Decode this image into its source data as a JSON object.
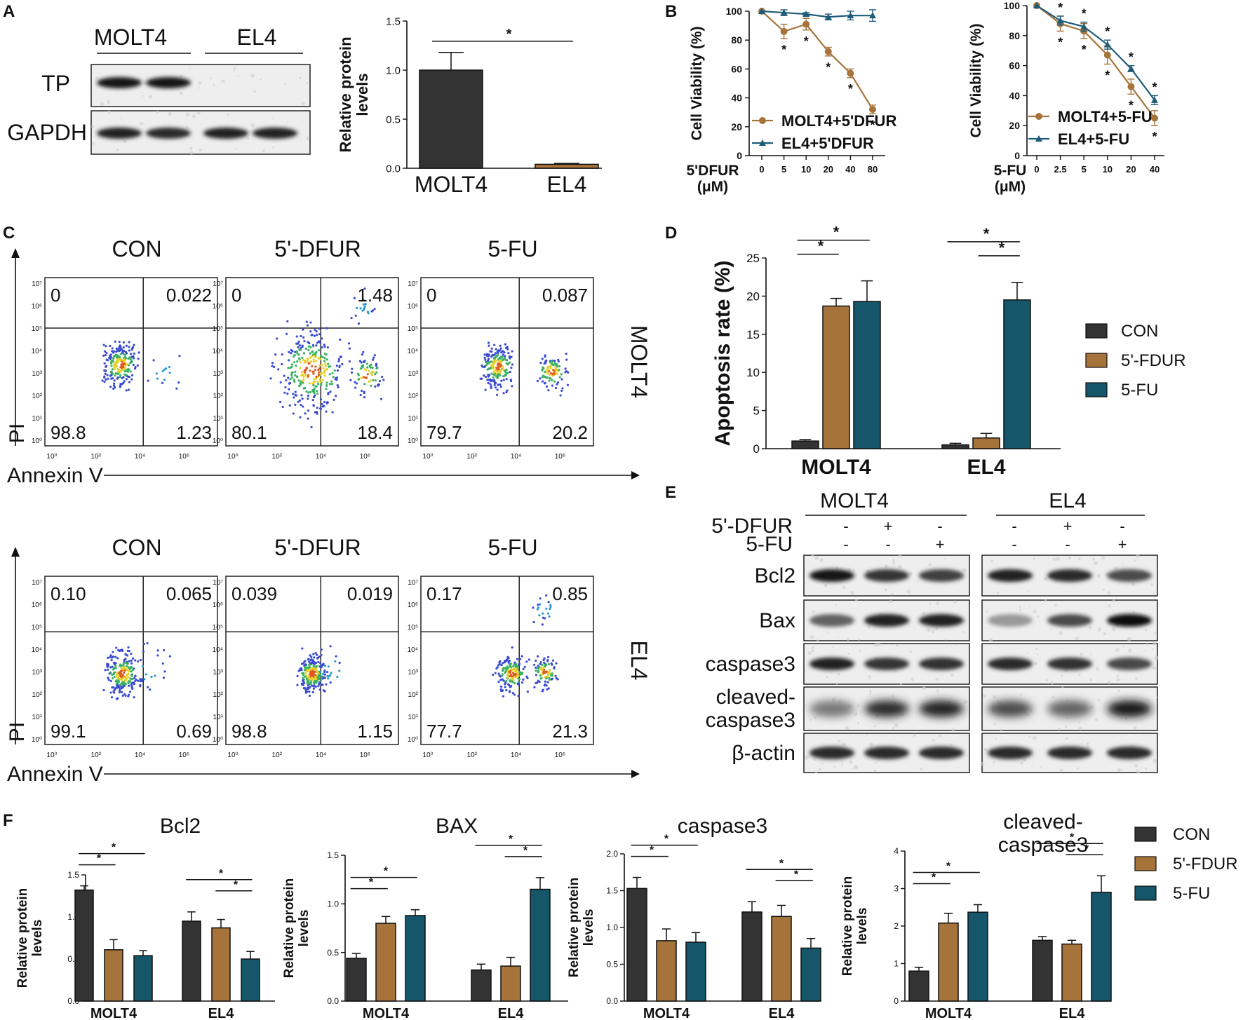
{
  "colors": {
    "con": "#333333",
    "dfur": "#A6743A",
    "fu": "#15566B",
    "molt4_line": "#A6743A",
    "el4_line": "#1F5C78",
    "axis": "#111111"
  },
  "panels": {
    "A": "A",
    "B": "B",
    "C": "C",
    "D": "D",
    "E": "E",
    "F": "F"
  },
  "panelA": {
    "blot_col_labels": [
      "MOLT4",
      "EL4"
    ],
    "blot_row_labels": [
      "TP",
      "GAPDH"
    ]
  },
  "panelC": {
    "conditions": [
      "CON",
      "5'-DFUR",
      "5-FU"
    ],
    "cell_lines": [
      "MOLT4",
      "EL4"
    ],
    "xlabel": "Annexin V",
    "ylabel": "PI",
    "xticks": [
      "10⁰",
      "10²",
      "10⁴",
      "10⁶"
    ],
    "yticks": [
      "10⁰",
      "10¹",
      "10²",
      "10³",
      "10⁴",
      "10⁵",
      "10⁶",
      "10⁷"
    ],
    "quadrants": [
      [
        {
          "ul": "0",
          "ur": "0.022",
          "ll": "98.8",
          "lr": "1.23"
        },
        {
          "ul": "0",
          "ur": "1.48",
          "ll": "80.1",
          "lr": "18.4"
        },
        {
          "ul": "0",
          "ur": "0.087",
          "ll": "79.7",
          "lr": "20.2"
        }
      ],
      [
        {
          "ul": "0.10",
          "ur": "0.065",
          "ll": "99.1",
          "lr": "0.69"
        },
        {
          "ul": "0.039",
          "ur": "0.019",
          "ll": "98.8",
          "lr": "1.15"
        },
        {
          "ul": "0.17",
          "ur": "0.85",
          "ll": "77.7",
          "lr": "21.3"
        }
      ]
    ]
  },
  "panelE": {
    "groups": [
      "MOLT4",
      "EL4"
    ],
    "treatment_rows": [
      {
        "label": "5'-DFUR",
        "signs": [
          "-",
          "+",
          "-",
          "-",
          "+",
          "-"
        ]
      },
      {
        "label": "5-FU",
        "signs": [
          "-",
          "-",
          "+",
          "-",
          "-",
          "+"
        ]
      }
    ],
    "proteins": [
      "Bcl2",
      "Bax",
      "caspase3",
      "cleaved-\ncaspase3",
      "β-actin"
    ]
  },
  "chart_data": [
    {
      "id": "A",
      "type": "bar",
      "title": "",
      "categories": [
        "MOLT4",
        "EL4"
      ],
      "values": [
        1.0,
        0.04
      ],
      "errors": [
        0.18,
        0.01
      ],
      "colors": [
        "#333333",
        "#A6743A"
      ],
      "ylabel": "Relative protein\nlevels",
      "ylim": [
        0,
        1.5
      ],
      "yticks": [
        "0.0",
        "0.5",
        "1.0",
        "1.5"
      ],
      "significance": [
        {
          "from": 0,
          "to": 1,
          "label": "*"
        }
      ]
    },
    {
      "id": "B1",
      "type": "line",
      "x": [
        "0",
        "5",
        "10",
        "20",
        "40",
        "80"
      ],
      "xlabel": "5'DFUR\n(μM)",
      "ylabel": "Cell Viability (%)",
      "ylim": [
        0,
        100
      ],
      "yticks": [
        "0",
        "20",
        "40",
        "60",
        "80",
        "100"
      ],
      "series": [
        {
          "name": "MOLT4+5'DFUR",
          "values": [
            100,
            86,
            91,
            72,
            57,
            32
          ],
          "errors": [
            0,
            5,
            4,
            3,
            3,
            3
          ],
          "marks": [
            "",
            "*",
            "*",
            "*",
            "*",
            "*"
          ]
        },
        {
          "name": "EL4+5'DFUR",
          "values": [
            100,
            99,
            98,
            96,
            97,
            97
          ],
          "errors": [
            0,
            2,
            1,
            2,
            3,
            4
          ]
        }
      ]
    },
    {
      "id": "B2",
      "type": "line",
      "x": [
        "0",
        "2.5",
        "5",
        "10",
        "20",
        "40"
      ],
      "xlabel": "5-FU\n(μM)",
      "ylabel": "Cell Viability (%)",
      "ylim": [
        0,
        100
      ],
      "yticks": [
        "0",
        "20",
        "40",
        "60",
        "80",
        "100"
      ],
      "series": [
        {
          "name": "MOLT4+5-FU",
          "values": [
            100,
            88,
            83,
            67,
            46,
            25
          ],
          "errors": [
            0,
            5,
            5,
            6,
            5,
            5
          ],
          "marks": [
            "",
            "*",
            "*",
            "*",
            "*",
            "*"
          ]
        },
        {
          "name": "EL4+5-FU",
          "values": [
            100,
            90,
            86,
            74,
            58,
            37
          ],
          "errors": [
            0,
            3,
            3,
            3,
            2,
            3
          ],
          "marks": [
            "",
            "*",
            "*",
            "*",
            "*",
            "*"
          ]
        }
      ]
    },
    {
      "id": "D",
      "type": "bar",
      "categories": [
        "MOLT4",
        "EL4"
      ],
      "series": [
        {
          "name": "CON",
          "values": [
            1.0,
            0.5
          ],
          "errors": [
            0.2,
            0.2
          ]
        },
        {
          "name": "5'-FDUR",
          "values": [
            18.7,
            1.4
          ],
          "errors": [
            1.0,
            0.6
          ]
        },
        {
          "name": "5-FU",
          "values": [
            19.3,
            19.5
          ],
          "errors": [
            2.7,
            2.3
          ]
        }
      ],
      "ylabel": "Apoptosis rate (%)",
      "ylim": [
        0,
        25
      ],
      "yticks": [
        "0",
        "5",
        "10",
        "15",
        "20",
        "25"
      ],
      "significance": [
        {
          "group": 0,
          "from": 0,
          "to": 1,
          "label": "*"
        },
        {
          "group": 0,
          "from": 0,
          "to": 2,
          "label": "*"
        },
        {
          "group": 1,
          "from": 1,
          "to": 2,
          "label": "*"
        },
        {
          "group": 1,
          "from": 0,
          "to": 2,
          "label": "*"
        }
      ]
    },
    {
      "id": "F1",
      "type": "bar",
      "title": "Bcl2",
      "categories": [
        "MOLT4",
        "EL4"
      ],
      "series": [
        {
          "name": "CON",
          "values": [
            1.32,
            0.95
          ],
          "errors": [
            0.05,
            0.11
          ]
        },
        {
          "name": "5'-FDUR",
          "values": [
            0.61,
            0.87
          ],
          "errors": [
            0.12,
            0.1
          ]
        },
        {
          "name": "5-FU",
          "values": [
            0.54,
            0.5
          ],
          "errors": [
            0.06,
            0.09
          ]
        }
      ],
      "ylabel": "Relative protein\nlevels",
      "ylim": [
        0,
        1.5
      ],
      "yticks": [
        "0.0",
        "0.5",
        "1.0",
        "1.5"
      ],
      "significance": [
        {
          "group": 0,
          "from": 0,
          "to": 1,
          "label": "*"
        },
        {
          "group": 0,
          "from": 0,
          "to": 2,
          "label": "*"
        },
        {
          "group": 1,
          "from": 1,
          "to": 2,
          "label": "*"
        },
        {
          "group": 1,
          "from": 0,
          "to": 2,
          "label": "*"
        }
      ]
    },
    {
      "id": "F2",
      "type": "bar",
      "title": "BAX",
      "categories": [
        "MOLT4",
        "EL4"
      ],
      "series": [
        {
          "name": "CON",
          "values": [
            0.44,
            0.32
          ],
          "errors": [
            0.05,
            0.06
          ]
        },
        {
          "name": "5'-FDUR",
          "values": [
            0.8,
            0.36
          ],
          "errors": [
            0.07,
            0.09
          ]
        },
        {
          "name": "5-FU",
          "values": [
            0.88,
            1.15
          ],
          "errors": [
            0.06,
            0.12
          ]
        }
      ],
      "ylabel": "Relative protein\nlevels",
      "ylim": [
        0,
        1.5
      ],
      "yticks": [
        "0.0",
        "0.5",
        "1.0",
        "1.5"
      ],
      "significance": [
        {
          "group": 0,
          "from": 0,
          "to": 1,
          "label": "*"
        },
        {
          "group": 0,
          "from": 0,
          "to": 2,
          "label": "*"
        },
        {
          "group": 1,
          "from": 1,
          "to": 2,
          "label": "*"
        },
        {
          "group": 1,
          "from": 0,
          "to": 2,
          "label": "*"
        }
      ]
    },
    {
      "id": "F3",
      "type": "bar",
      "title": "caspase3",
      "categories": [
        "MOLT4",
        "EL4"
      ],
      "series": [
        {
          "name": "CON",
          "values": [
            1.53,
            1.21
          ],
          "errors": [
            0.15,
            0.14
          ]
        },
        {
          "name": "5'-FDUR",
          "values": [
            0.82,
            1.15
          ],
          "errors": [
            0.16,
            0.15
          ]
        },
        {
          "name": "5-FU",
          "values": [
            0.8,
            0.72
          ],
          "errors": [
            0.13,
            0.13
          ]
        }
      ],
      "ylabel": "Relative protein\nlevels",
      "ylim": [
        0,
        2.0
      ],
      "yticks": [
        "0.0",
        "0.5",
        "1.0",
        "1.5",
        "2.0"
      ],
      "significance": [
        {
          "group": 0,
          "from": 0,
          "to": 1,
          "label": "*"
        },
        {
          "group": 0,
          "from": 0,
          "to": 2,
          "label": "*"
        },
        {
          "group": 1,
          "from": 1,
          "to": 2,
          "label": "*"
        },
        {
          "group": 1,
          "from": 0,
          "to": 2,
          "label": "*"
        }
      ]
    },
    {
      "id": "F4",
      "type": "bar",
      "title": "cleaved-\ncaspase3",
      "categories": [
        "MOLT4",
        "EL4"
      ],
      "series": [
        {
          "name": "CON",
          "values": [
            0.8,
            1.62
          ],
          "errors": [
            0.1,
            0.1
          ]
        },
        {
          "name": "5'-FDUR",
          "values": [
            2.08,
            1.52
          ],
          "errors": [
            0.26,
            0.1
          ]
        },
        {
          "name": "5-FU",
          "values": [
            2.37,
            2.9
          ],
          "errors": [
            0.2,
            0.44
          ]
        }
      ],
      "ylabel": "Relative protein\nlevels",
      "ylim": [
        0,
        4
      ],
      "yticks": [
        "0",
        "1",
        "2",
        "3",
        "4"
      ],
      "legend": [
        "CON",
        "5'-FDUR",
        "5-FU"
      ],
      "significance": [
        {
          "group": 0,
          "from": 0,
          "to": 1,
          "label": "*"
        },
        {
          "group": 0,
          "from": 0,
          "to": 2,
          "label": "*"
        },
        {
          "group": 1,
          "from": 1,
          "to": 2,
          "label": "*"
        },
        {
          "group": 1,
          "from": 0,
          "to": 2,
          "label": "*"
        }
      ]
    }
  ]
}
